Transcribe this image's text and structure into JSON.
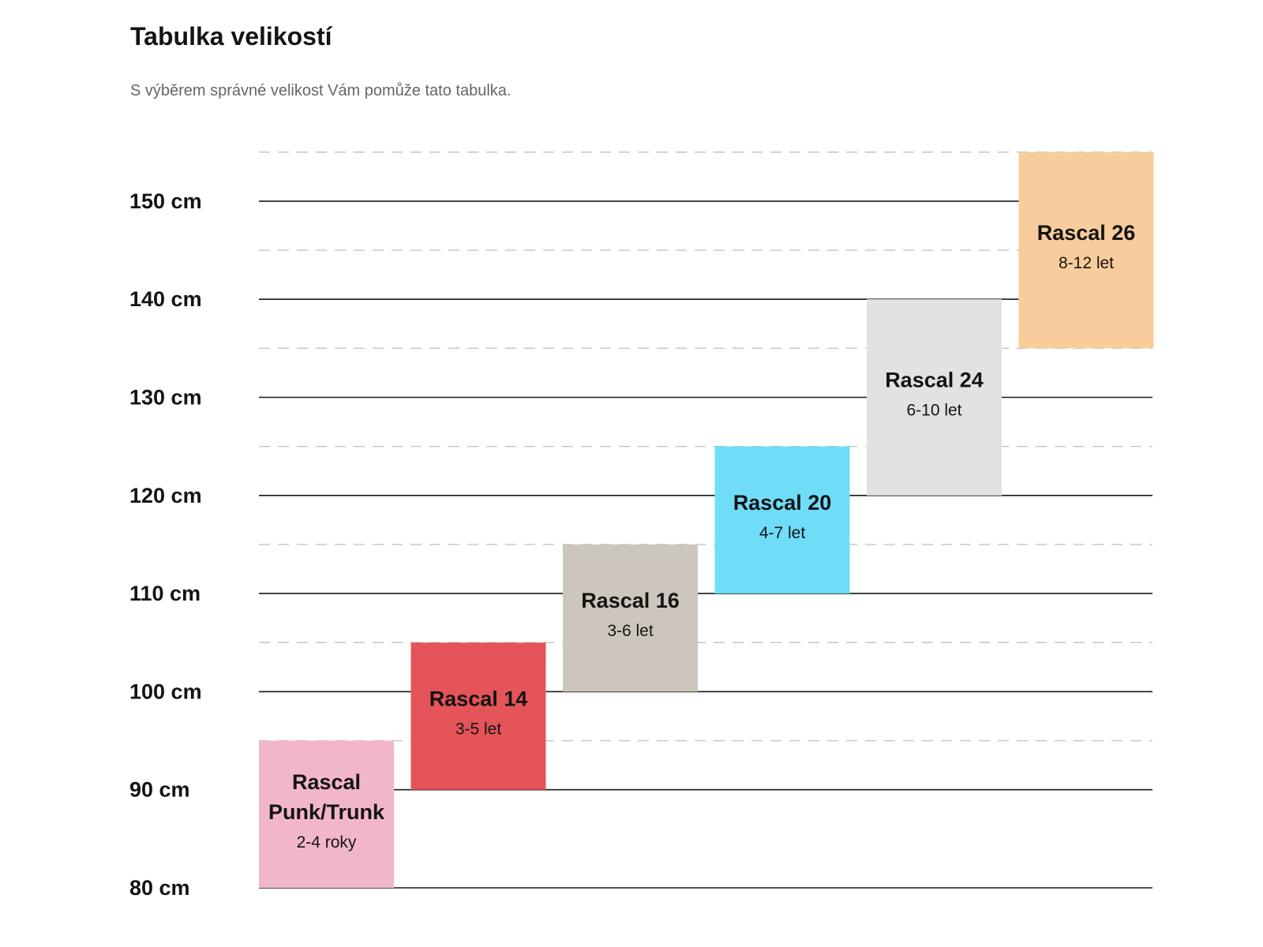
{
  "header": {
    "title": "Tabulka velikostí",
    "subtitle": "S výběrem správné velikost Vám pomůže tato tabulka."
  },
  "chart_data": {
    "type": "bar",
    "title": "Tabulka velikostí",
    "subtitle": "S výběrem správné velikost Vám pomůže tato tabulka.",
    "y_unit": "cm",
    "ylim": [
      80,
      150
    ],
    "y_ticks": [
      80,
      90,
      100,
      110,
      120,
      130,
      140,
      150
    ],
    "y_tick_labels": [
      "80 cm",
      "90 cm",
      "100 cm",
      "110 cm",
      "120 cm",
      "130 cm",
      "140 cm",
      "150 cm"
    ],
    "grid": {
      "major": "solid",
      "minor": "dashed"
    },
    "categories": [
      {
        "name_lines": [
          "Rascal",
          "Punk/Trunk"
        ],
        "age": "2-4 roky",
        "y_min": 80,
        "y_max": 95,
        "color": "#f2b6ca"
      },
      {
        "name_lines": [
          "Rascal 14"
        ],
        "age": "3-5 let",
        "y_min": 90,
        "y_max": 105,
        "color": "#e45458"
      },
      {
        "name_lines": [
          "Rascal 16"
        ],
        "age": "3-6 let",
        "y_min": 100,
        "y_max": 115,
        "color": "#ccc6bc"
      },
      {
        "name_lines": [
          "Rascal 20"
        ],
        "age": "4-7 let",
        "y_min": 110,
        "y_max": 125,
        "color": "#6fdcf8"
      },
      {
        "name_lines": [
          "Rascal 24"
        ],
        "age": "6-10 let",
        "y_min": 120,
        "y_max": 140,
        "color": "#e2e2e2"
      },
      {
        "name_lines": [
          "Rascal 26"
        ],
        "age": "8-12 let",
        "y_min": 135,
        "y_max": 155,
        "color": "#f8cd9b"
      }
    ]
  }
}
